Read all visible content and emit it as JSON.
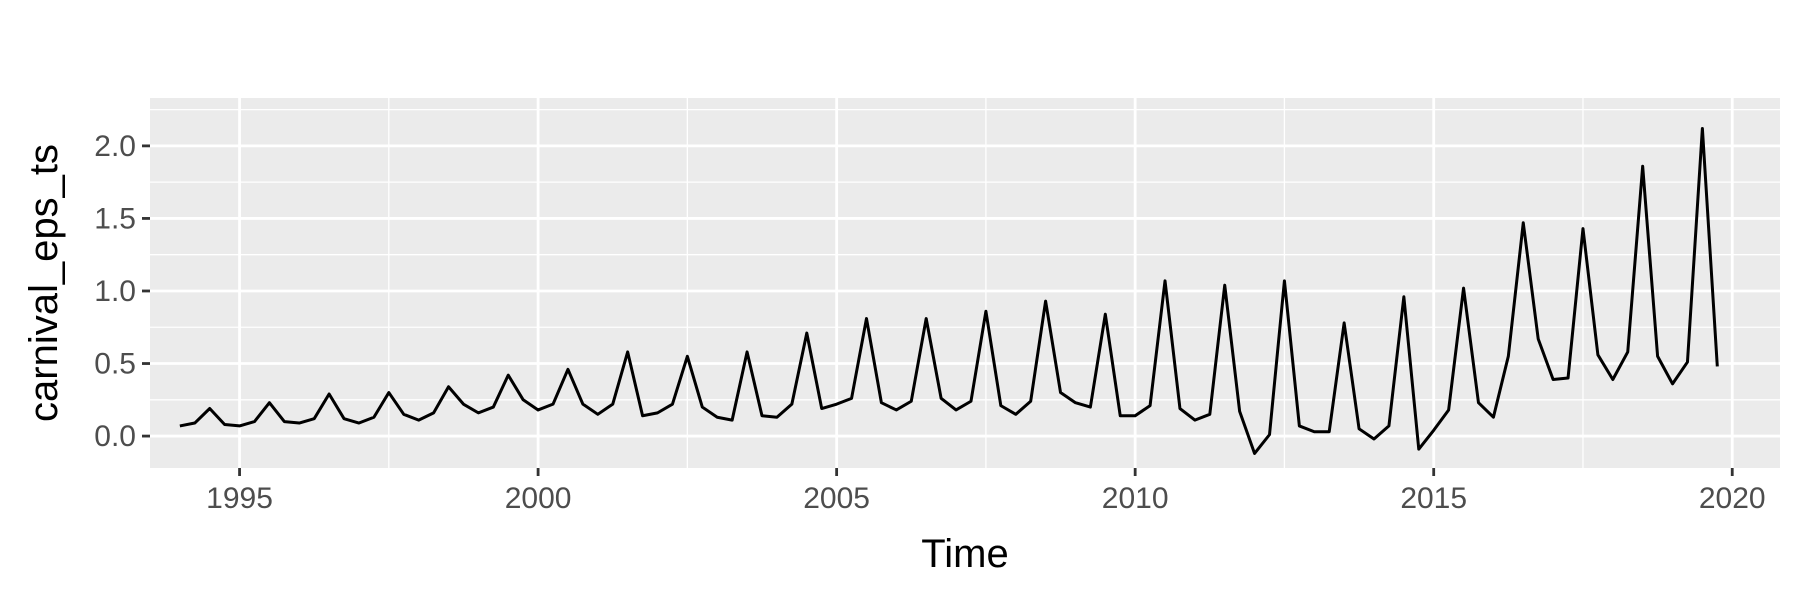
{
  "chart_data": {
    "type": "line",
    "xlabel": "Time",
    "ylabel": "carnival_eps_ts",
    "xlim": [
      1993.5,
      2020.8
    ],
    "ylim": [
      -0.22,
      2.33
    ],
    "x_ticks": [
      1995,
      2000,
      2005,
      2010,
      2015,
      2020
    ],
    "x_tick_labels": [
      "1995",
      "2000",
      "2005",
      "2010",
      "2015",
      "2020"
    ],
    "y_ticks": [
      0.0,
      0.5,
      1.0,
      1.5,
      2.0
    ],
    "y_tick_labels": [
      "0.0",
      "0.5",
      "1.0",
      "1.5",
      "2.0"
    ],
    "grid": true,
    "legend": "none",
    "colors": {
      "panel": "#ebebeb",
      "grid": "#ffffff",
      "line": "#000000",
      "tick_text": "#4d4d4d",
      "tick_mark": "#333333"
    },
    "series": [
      {
        "x_start": 1994.0,
        "frequency": 4,
        "values": [
          0.07,
          0.09,
          0.19,
          0.08,
          0.07,
          0.1,
          0.23,
          0.1,
          0.09,
          0.12,
          0.29,
          0.12,
          0.09,
          0.13,
          0.3,
          0.15,
          0.11,
          0.16,
          0.34,
          0.22,
          0.16,
          0.2,
          0.42,
          0.25,
          0.18,
          0.22,
          0.46,
          0.22,
          0.15,
          0.22,
          0.58,
          0.14,
          0.16,
          0.22,
          0.55,
          0.2,
          0.13,
          0.11,
          0.58,
          0.14,
          0.13,
          0.22,
          0.71,
          0.19,
          0.22,
          0.26,
          0.81,
          0.23,
          0.18,
          0.24,
          0.81,
          0.26,
          0.18,
          0.24,
          0.86,
          0.21,
          0.15,
          0.24,
          0.93,
          0.3,
          0.23,
          0.2,
          0.84,
          0.14,
          0.14,
          0.21,
          1.07,
          0.19,
          0.11,
          0.15,
          1.04,
          0.17,
          -0.12,
          0.01,
          1.07,
          0.07,
          0.03,
          0.03,
          0.78,
          0.05,
          -0.02,
          0.07,
          0.96,
          -0.09,
          0.04,
          0.18,
          1.02,
          0.23,
          0.13,
          0.55,
          1.47,
          0.67,
          0.39,
          0.4,
          1.43,
          0.56,
          0.39,
          0.58,
          1.86,
          0.55,
          0.36,
          0.51,
          2.12,
          0.48
        ]
      }
    ]
  }
}
